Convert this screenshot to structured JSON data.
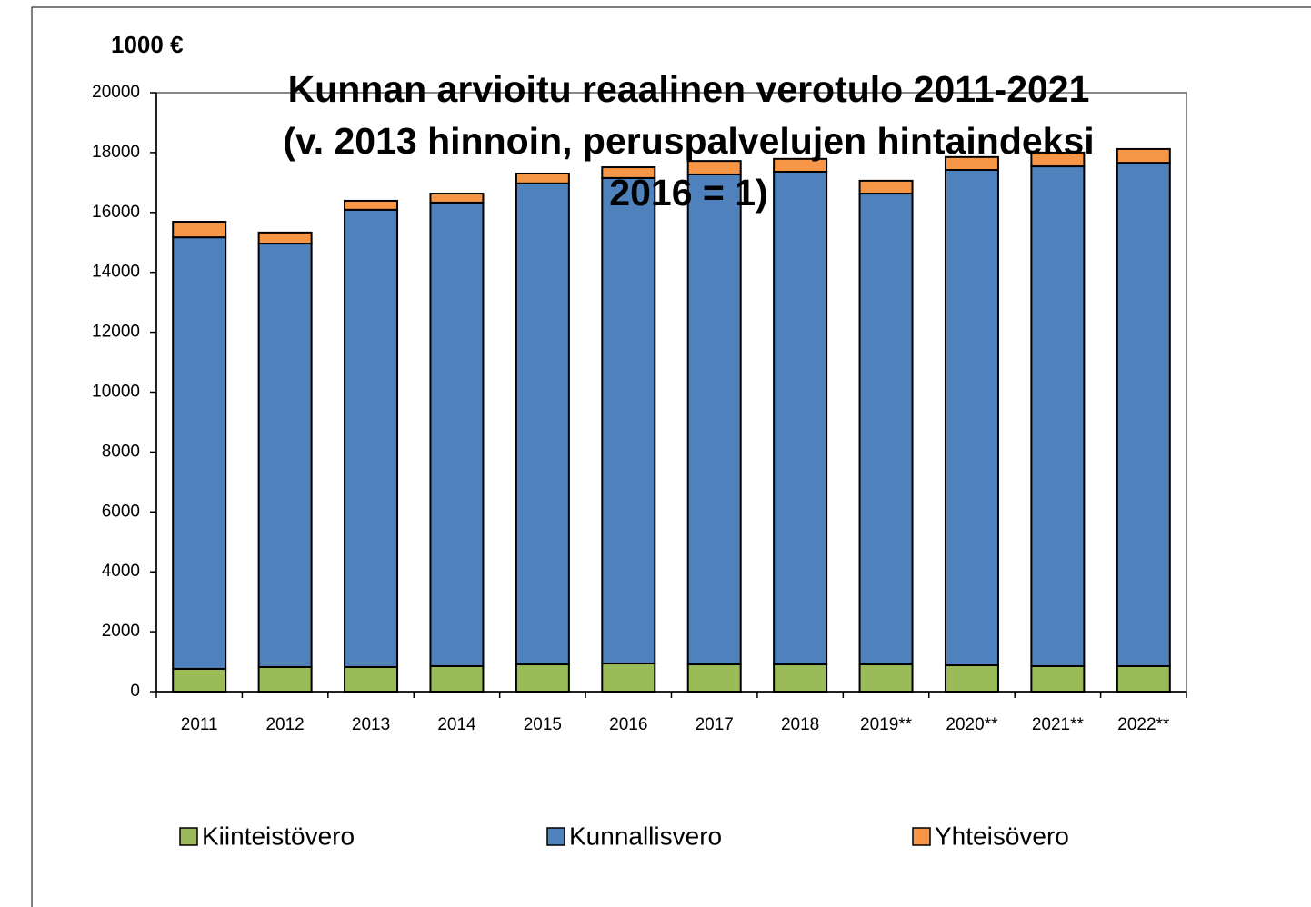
{
  "chart_data": {
    "type": "stacked_bar",
    "title": "Kunnan arvioitu reaalinen verotulo 2011-2021 (v. 2013 hinnoin, peruspalvelujen hintaindeksi 2016 = 1)",
    "y_label": "1000 €",
    "categories": [
      "2011",
      "2012",
      "2013",
      "2014",
      "2015",
      "2016",
      "2017",
      "2018",
      "2019**",
      "2020**",
      "2021**",
      "2022**"
    ],
    "series": [
      {
        "name": "Kiinteistövero",
        "color": "#9bbb59",
        "values": [
          760,
          820,
          820,
          850,
          910,
          940,
          910,
          910,
          910,
          880,
          850,
          850
        ]
      },
      {
        "name": "Kunnallisvero",
        "color": "#4f81bd",
        "values": [
          14410,
          14140,
          15270,
          15480,
          16060,
          16210,
          16360,
          16450,
          15720,
          16540,
          16690,
          16810
        ]
      },
      {
        "name": "Yhteisövero",
        "color": "#f79646",
        "values": [
          520,
          370,
          300,
          300,
          330,
          360,
          450,
          430,
          430,
          430,
          460,
          460
        ]
      }
    ],
    "ylim": [
      0,
      20000
    ],
    "yticks": [
      0,
      2000,
      4000,
      6000,
      8000,
      10000,
      12000,
      14000,
      16000,
      18000,
      20000
    ]
  }
}
